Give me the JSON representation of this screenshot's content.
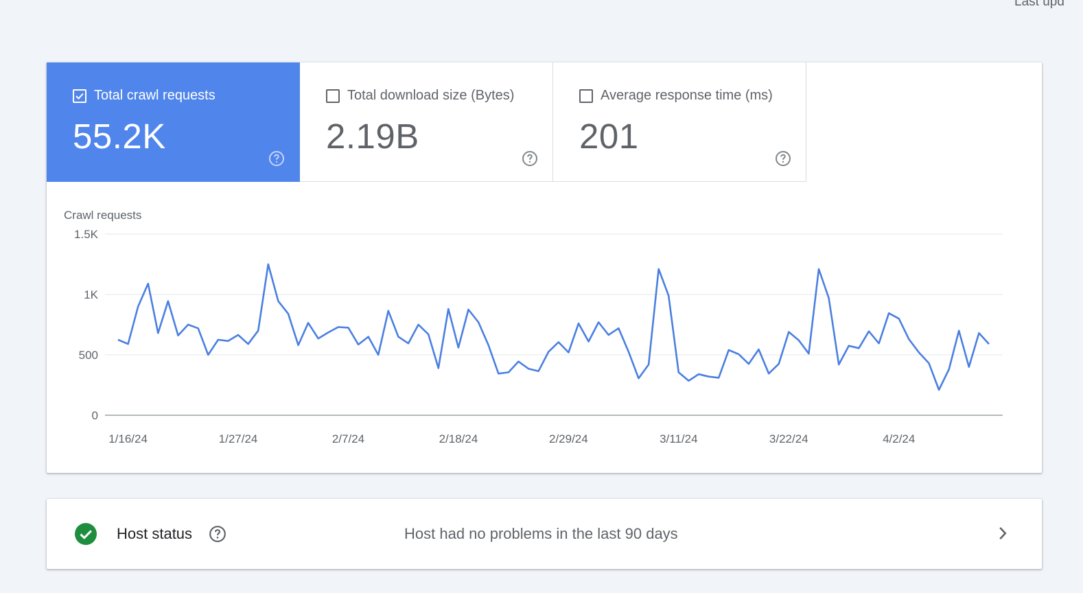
{
  "header": {
    "last_updated": "Last upd"
  },
  "tiles": [
    {
      "label": "Total crawl requests",
      "value": "55.2K",
      "checked": true
    },
    {
      "label": "Total download size (Bytes)",
      "value": "2.19B",
      "checked": false
    },
    {
      "label": "Average response time (ms)",
      "value": "201",
      "checked": false
    }
  ],
  "chart_data": {
    "type": "line",
    "title": "Crawl requests",
    "xlabel": "",
    "ylabel": "",
    "ylim": [
      0,
      1500
    ],
    "yticks": [
      "0",
      "500",
      "1K",
      "1.5K"
    ],
    "xticks": [
      "1/16/24",
      "1/27/24",
      "2/7/24",
      "2/18/24",
      "2/29/24",
      "3/11/24",
      "3/22/24",
      "4/2/24"
    ],
    "grid": true,
    "color": "#4a7fe0",
    "x_start": "1/15/24",
    "values": [
      625,
      590,
      900,
      1090,
      680,
      945,
      660,
      750,
      720,
      500,
      625,
      615,
      665,
      590,
      700,
      1250,
      945,
      840,
      580,
      765,
      635,
      685,
      730,
      725,
      585,
      650,
      500,
      865,
      650,
      595,
      750,
      670,
      390,
      880,
      560,
      875,
      770,
      580,
      345,
      355,
      445,
      385,
      365,
      525,
      605,
      520,
      760,
      610,
      770,
      665,
      720,
      525,
      305,
      420,
      1210,
      990,
      355,
      285,
      340,
      320,
      310,
      540,
      505,
      425,
      545,
      345,
      425,
      690,
      620,
      510,
      1210,
      970,
      420,
      575,
      555,
      695,
      595,
      845,
      800,
      630,
      520,
      430,
      210,
      380,
      700,
      400,
      680,
      590
    ]
  },
  "host_status": {
    "label": "Host status",
    "message": "Host had no problems in the last 90 days",
    "status_color": "#1e8e3e"
  }
}
